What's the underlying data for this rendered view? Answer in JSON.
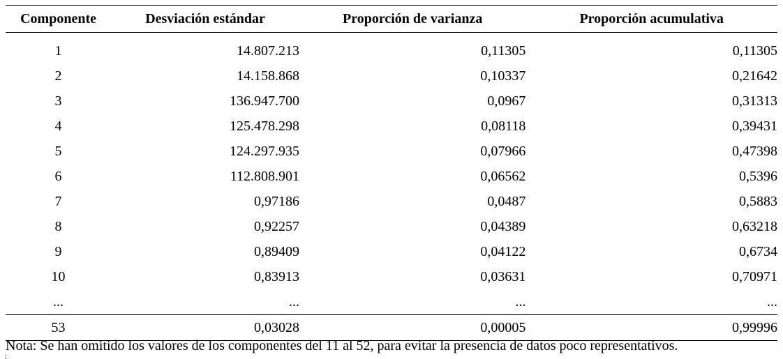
{
  "table": {
    "headers": [
      "Componente",
      "Desviación estándar",
      "Proporción de varianza",
      "Proporción acumulativa"
    ],
    "rows": [
      [
        "1",
        "14.807.213",
        "0,11305",
        "0,11305"
      ],
      [
        "2",
        "14.158.868",
        "0,10337",
        "0,21642"
      ],
      [
        "3",
        "136.947.700",
        "0,0967",
        "0,31313"
      ],
      [
        "4",
        "125.478.298",
        "0,08118",
        "0,39431"
      ],
      [
        "5",
        "124.297.935",
        "0,07966",
        "0,47398"
      ],
      [
        "6",
        "112.808.901",
        "0,06562",
        "0,5396"
      ],
      [
        "7",
        "0,97186",
        "0,0487",
        "0,5883"
      ],
      [
        "8",
        "0,92257",
        "0,04389",
        "0,63218"
      ],
      [
        "9",
        "0,89409",
        "0,04122",
        "0,6734"
      ],
      [
        "10",
        "0,83913",
        "0,03631",
        "0,70971"
      ],
      [
        "...",
        "...",
        "...",
        "..."
      ]
    ],
    "last_row": [
      "53",
      "0,03028",
      "0,00005",
      "0,99996"
    ]
  },
  "note": "Nota: Se han omitido los valores de los componentes del 11 al 52, para evitar la presencia de datos poco representativos."
}
